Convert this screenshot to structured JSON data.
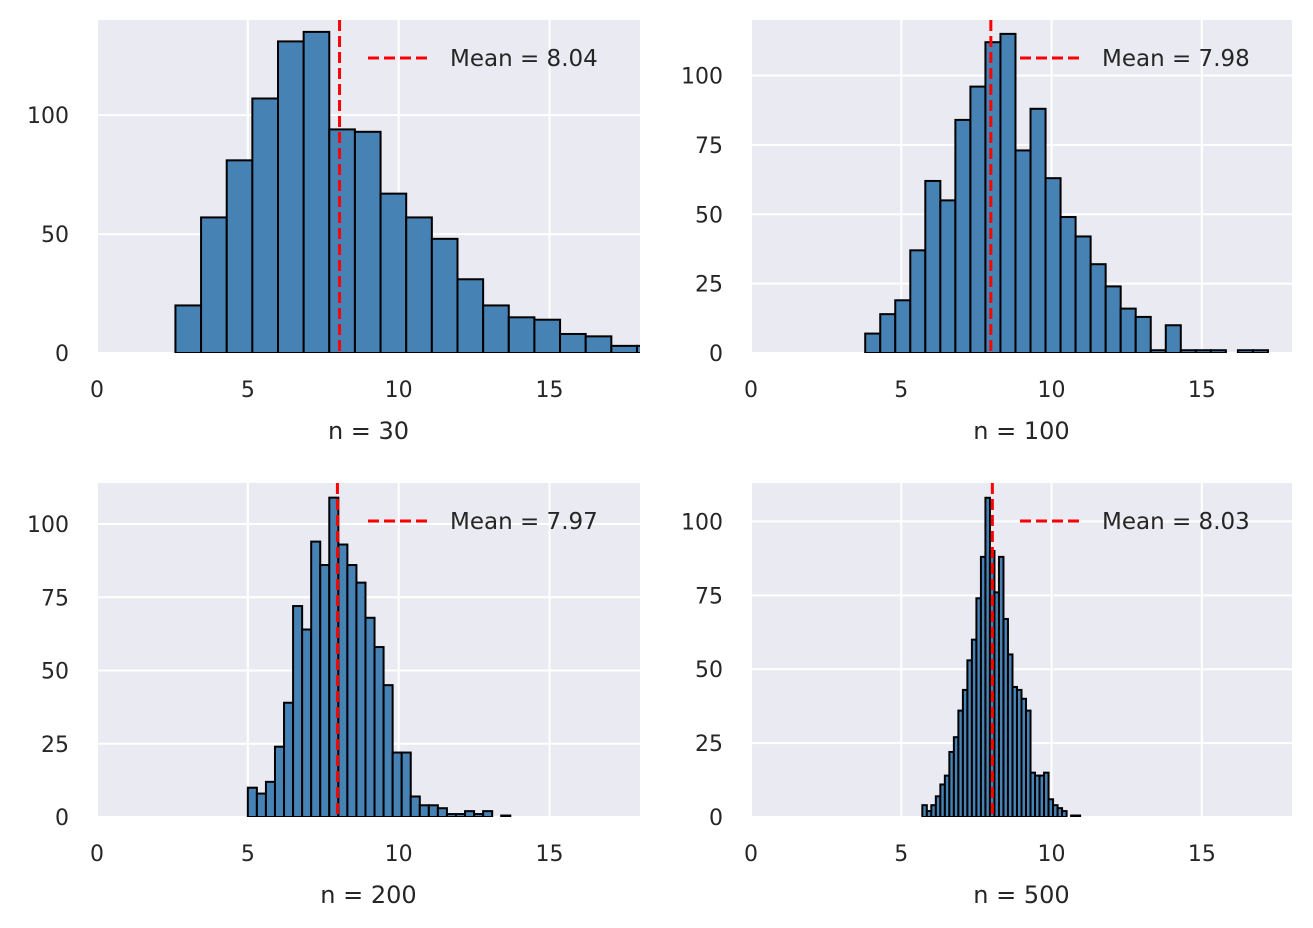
{
  "colors": {
    "panel_background": "#eaeaf2",
    "grid": "#ffffff",
    "bar_fill": "#4682b4",
    "bar_edge": "#000000",
    "mean_line": "#ff0000",
    "text": "#262626"
  },
  "chart_data": [
    {
      "type": "bar",
      "subtype": "histogram",
      "xlabel": "n = 30",
      "ylabel": "",
      "xlim": [
        0,
        18
      ],
      "ylim": [
        0,
        140
      ],
      "xticks": [
        "0",
        "5",
        "10",
        "15"
      ],
      "yticks": [
        "0",
        "50",
        "100"
      ],
      "grid": true,
      "legend_position": "top-right",
      "legend": "Mean = 8.04",
      "mean": 8.04,
      "bins": [
        {
          "x0": 2.6,
          "x1": 3.45,
          "count": 20
        },
        {
          "x0": 3.45,
          "x1": 4.3,
          "count": 57
        },
        {
          "x0": 4.3,
          "x1": 5.15,
          "count": 81
        },
        {
          "x0": 5.15,
          "x1": 6.0,
          "count": 107
        },
        {
          "x0": 6.0,
          "x1": 6.85,
          "count": 131
        },
        {
          "x0": 6.85,
          "x1": 7.7,
          "count": 135
        },
        {
          "x0": 7.7,
          "x1": 8.55,
          "count": 94
        },
        {
          "x0": 8.55,
          "x1": 9.4,
          "count": 93
        },
        {
          "x0": 9.4,
          "x1": 10.25,
          "count": 67
        },
        {
          "x0": 10.25,
          "x1": 11.1,
          "count": 57
        },
        {
          "x0": 11.1,
          "x1": 11.95,
          "count": 48
        },
        {
          "x0": 11.95,
          "x1": 12.8,
          "count": 31
        },
        {
          "x0": 12.8,
          "x1": 13.65,
          "count": 20
        },
        {
          "x0": 13.65,
          "x1": 14.5,
          "count": 15
        },
        {
          "x0": 14.5,
          "x1": 15.35,
          "count": 14
        },
        {
          "x0": 15.35,
          "x1": 16.2,
          "count": 8
        },
        {
          "x0": 16.2,
          "x1": 17.05,
          "count": 7
        },
        {
          "x0": 17.05,
          "x1": 17.9,
          "count": 3
        },
        {
          "x0": 17.9,
          "x1": 18.75,
          "count": 3
        }
      ]
    },
    {
      "type": "bar",
      "subtype": "histogram",
      "xlabel": "n = 100",
      "ylabel": "",
      "xlim": [
        0,
        18
      ],
      "ylim": [
        0,
        120
      ],
      "xticks": [
        "0",
        "5",
        "10",
        "15"
      ],
      "yticks": [
        "0",
        "25",
        "50",
        "75",
        "100"
      ],
      "grid": true,
      "legend_position": "top-right",
      "legend": "Mean = 7.98",
      "mean": 7.98,
      "bins": [
        {
          "x0": 3.8,
          "x1": 4.3,
          "count": 7
        },
        {
          "x0": 4.3,
          "x1": 4.8,
          "count": 14
        },
        {
          "x0": 4.8,
          "x1": 5.3,
          "count": 19
        },
        {
          "x0": 5.3,
          "x1": 5.8,
          "count": 37
        },
        {
          "x0": 5.8,
          "x1": 6.3,
          "count": 62
        },
        {
          "x0": 6.3,
          "x1": 6.8,
          "count": 55
        },
        {
          "x0": 6.8,
          "x1": 7.3,
          "count": 84
        },
        {
          "x0": 7.3,
          "x1": 7.8,
          "count": 96
        },
        {
          "x0": 7.8,
          "x1": 8.3,
          "count": 112
        },
        {
          "x0": 8.3,
          "x1": 8.8,
          "count": 115
        },
        {
          "x0": 8.8,
          "x1": 9.3,
          "count": 73
        },
        {
          "x0": 9.3,
          "x1": 9.8,
          "count": 88
        },
        {
          "x0": 9.8,
          "x1": 10.3,
          "count": 63
        },
        {
          "x0": 10.3,
          "x1": 10.8,
          "count": 49
        },
        {
          "x0": 10.8,
          "x1": 11.3,
          "count": 42
        },
        {
          "x0": 11.3,
          "x1": 11.8,
          "count": 32
        },
        {
          "x0": 11.8,
          "x1": 12.3,
          "count": 24
        },
        {
          "x0": 12.3,
          "x1": 12.8,
          "count": 16
        },
        {
          "x0": 12.8,
          "x1": 13.3,
          "count": 13
        },
        {
          "x0": 13.3,
          "x1": 13.8,
          "count": 1
        },
        {
          "x0": 13.8,
          "x1": 14.3,
          "count": 10
        },
        {
          "x0": 14.3,
          "x1": 14.8,
          "count": 1
        },
        {
          "x0": 14.8,
          "x1": 15.3,
          "count": 1
        },
        {
          "x0": 15.3,
          "x1": 15.8,
          "count": 1
        },
        {
          "x0": 16.2,
          "x1": 16.7,
          "count": 1
        },
        {
          "x0": 16.7,
          "x1": 17.2,
          "count": 1
        }
      ]
    },
    {
      "type": "bar",
      "subtype": "histogram",
      "xlabel": "n = 200",
      "ylabel": "",
      "xlim": [
        0,
        18
      ],
      "ylim": [
        0,
        114
      ],
      "xticks": [
        "0",
        "5",
        "10",
        "15"
      ],
      "yticks": [
        "0",
        "25",
        "50",
        "75",
        "100"
      ],
      "grid": true,
      "legend_position": "top-right",
      "legend": "Mean = 7.97",
      "mean": 7.97,
      "bins": [
        {
          "x0": 5.0,
          "x1": 5.3,
          "count": 10
        },
        {
          "x0": 5.3,
          "x1": 5.6,
          "count": 8
        },
        {
          "x0": 5.6,
          "x1": 5.9,
          "count": 12
        },
        {
          "x0": 5.9,
          "x1": 6.2,
          "count": 24
        },
        {
          "x0": 6.2,
          "x1": 6.5,
          "count": 39
        },
        {
          "x0": 6.5,
          "x1": 6.8,
          "count": 72
        },
        {
          "x0": 6.8,
          "x1": 7.1,
          "count": 64
        },
        {
          "x0": 7.1,
          "x1": 7.4,
          "count": 94
        },
        {
          "x0": 7.4,
          "x1": 7.7,
          "count": 86
        },
        {
          "x0": 7.7,
          "x1": 8.0,
          "count": 109
        },
        {
          "x0": 8.0,
          "x1": 8.3,
          "count": 93
        },
        {
          "x0": 8.3,
          "x1": 8.6,
          "count": 86
        },
        {
          "x0": 8.6,
          "x1": 8.9,
          "count": 80
        },
        {
          "x0": 8.9,
          "x1": 9.2,
          "count": 68
        },
        {
          "x0": 9.2,
          "x1": 9.5,
          "count": 58
        },
        {
          "x0": 9.5,
          "x1": 9.8,
          "count": 45
        },
        {
          "x0": 9.8,
          "x1": 10.1,
          "count": 22
        },
        {
          "x0": 10.1,
          "x1": 10.4,
          "count": 22
        },
        {
          "x0": 10.4,
          "x1": 10.7,
          "count": 7
        },
        {
          "x0": 10.7,
          "x1": 11.0,
          "count": 4
        },
        {
          "x0": 11.0,
          "x1": 11.3,
          "count": 4
        },
        {
          "x0": 11.3,
          "x1": 11.6,
          "count": 3
        },
        {
          "x0": 11.6,
          "x1": 11.9,
          "count": 1
        },
        {
          "x0": 11.9,
          "x1": 12.2,
          "count": 1
        },
        {
          "x0": 12.2,
          "x1": 12.5,
          "count": 2
        },
        {
          "x0": 12.5,
          "x1": 12.8,
          "count": 1
        },
        {
          "x0": 12.8,
          "x1": 13.1,
          "count": 2
        },
        {
          "x0": 13.1,
          "x1": 13.4,
          "count": 0
        },
        {
          "x0": 13.4,
          "x1": 13.7,
          "count": 0.5
        }
      ]
    },
    {
      "type": "bar",
      "subtype": "histogram",
      "xlabel": "n = 500",
      "ylabel": "",
      "xlim": [
        0,
        18
      ],
      "ylim": [
        0,
        113
      ],
      "xticks": [
        "0",
        "5",
        "10",
        "15"
      ],
      "yticks": [
        "0",
        "25",
        "50",
        "75",
        "100"
      ],
      "grid": true,
      "legend_position": "top-right",
      "legend": "Mean = 8.03",
      "mean": 8.03,
      "bins": [
        {
          "x0": 5.7,
          "x1": 5.85,
          "count": 4
        },
        {
          "x0": 5.85,
          "x1": 6.0,
          "count": 2
        },
        {
          "x0": 6.0,
          "x1": 6.15,
          "count": 4
        },
        {
          "x0": 6.15,
          "x1": 6.3,
          "count": 7
        },
        {
          "x0": 6.3,
          "x1": 6.45,
          "count": 11
        },
        {
          "x0": 6.45,
          "x1": 6.6,
          "count": 14
        },
        {
          "x0": 6.6,
          "x1": 6.75,
          "count": 22
        },
        {
          "x0": 6.75,
          "x1": 6.9,
          "count": 27
        },
        {
          "x0": 6.9,
          "x1": 7.05,
          "count": 36
        },
        {
          "x0": 7.05,
          "x1": 7.2,
          "count": 43
        },
        {
          "x0": 7.2,
          "x1": 7.35,
          "count": 53
        },
        {
          "x0": 7.35,
          "x1": 7.5,
          "count": 60
        },
        {
          "x0": 7.5,
          "x1": 7.65,
          "count": 74
        },
        {
          "x0": 7.65,
          "x1": 7.8,
          "count": 88
        },
        {
          "x0": 7.8,
          "x1": 7.95,
          "count": 108
        },
        {
          "x0": 7.95,
          "x1": 8.1,
          "count": 90
        },
        {
          "x0": 8.1,
          "x1": 8.25,
          "count": 76
        },
        {
          "x0": 8.25,
          "x1": 8.4,
          "count": 88
        },
        {
          "x0": 8.4,
          "x1": 8.55,
          "count": 67
        },
        {
          "x0": 8.55,
          "x1": 8.7,
          "count": 55
        },
        {
          "x0": 8.7,
          "x1": 8.85,
          "count": 44
        },
        {
          "x0": 8.85,
          "x1": 9.0,
          "count": 43
        },
        {
          "x0": 9.0,
          "x1": 9.15,
          "count": 40
        },
        {
          "x0": 9.15,
          "x1": 9.3,
          "count": 36
        },
        {
          "x0": 9.3,
          "x1": 9.45,
          "count": 15
        },
        {
          "x0": 9.45,
          "x1": 9.6,
          "count": 14
        },
        {
          "x0": 9.6,
          "x1": 9.75,
          "count": 14
        },
        {
          "x0": 9.75,
          "x1": 9.9,
          "count": 15
        },
        {
          "x0": 9.9,
          "x1": 10.05,
          "count": 6
        },
        {
          "x0": 10.05,
          "x1": 10.2,
          "count": 4
        },
        {
          "x0": 10.2,
          "x1": 10.35,
          "count": 3
        },
        {
          "x0": 10.35,
          "x1": 10.5,
          "count": 2
        },
        {
          "x0": 10.5,
          "x1": 10.65,
          "count": 0
        },
        {
          "x0": 10.65,
          "x1": 10.8,
          "count": 0.5
        },
        {
          "x0": 10.8,
          "x1": 10.95,
          "count": 0.5
        }
      ]
    }
  ]
}
